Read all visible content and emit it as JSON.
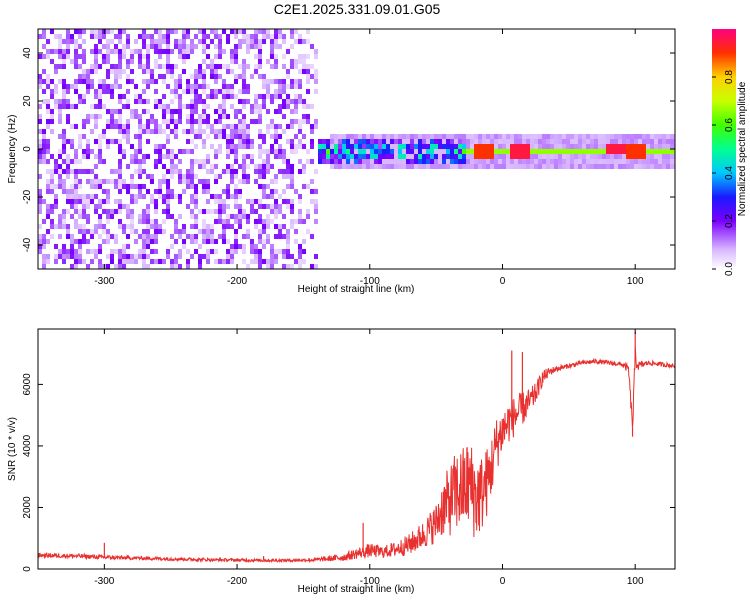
{
  "title": "C2E1.2025.331.09.01.G05",
  "chart_data": [
    {
      "type": "heatmap",
      "xlabel": "Height of straight line (km)",
      "ylabel": "Frequency (Hz)",
      "xlim": [
        -350,
        130
      ],
      "ylim": [
        -50,
        50
      ],
      "xticks": [
        -300,
        -200,
        -100,
        0,
        100
      ],
      "yticks": [
        -40,
        -20,
        0,
        20,
        40
      ],
      "colorbar": {
        "label": "Normalized spectral amplitude",
        "range": [
          0.0,
          1.0
        ],
        "ticks": [
          0.0,
          0.2,
          0.4,
          0.6,
          0.8
        ],
        "colormap": "rainbow"
      },
      "regions": [
        {
          "x": [
            -350,
            -140
          ],
          "freq": [
            -50,
            50
          ],
          "amplitude": 0.1,
          "pattern": "broadband noise"
        },
        {
          "x": [
            -140,
            -30
          ],
          "freq": [
            -5,
            6
          ],
          "amplitude": 0.3,
          "pattern": "narrowing band"
        },
        {
          "x": [
            -30,
            130
          ],
          "freq": [
            -2,
            2
          ],
          "amplitude": 0.6,
          "pattern": "narrow line at 0 Hz"
        }
      ],
      "peaks": [
        {
          "x": -15,
          "freq": 0,
          "amplitude": 0.9
        },
        {
          "x": 12,
          "freq": 0,
          "amplitude": 0.95
        },
        {
          "x": 85,
          "freq": 1,
          "amplitude": 0.95
        },
        {
          "x": 100,
          "freq": 0,
          "amplitude": 0.9
        }
      ]
    },
    {
      "type": "line",
      "xlabel": "Height of straight line (km)",
      "ylabel": "SNR (10 * v/v)",
      "xlim": [
        -350,
        130
      ],
      "ylim": [
        0,
        7800
      ],
      "xticks": [
        -300,
        -200,
        -100,
        0,
        100
      ],
      "yticks": [
        0,
        2000,
        4000,
        6000
      ],
      "color": "#e8302f",
      "series": [
        {
          "x": [
            -350,
            -320,
            -300,
            -280,
            -250,
            -220,
            -200,
            -180,
            -160,
            -140,
            -120,
            -110,
            -100,
            -90,
            -80,
            -70,
            -60,
            -50,
            -45,
            -40,
            -35,
            -30,
            -25,
            -20,
            -15,
            -10,
            -5,
            0,
            5,
            10,
            15,
            20,
            25,
            30,
            35,
            40,
            50,
            60,
            70,
            80,
            90,
            95,
            98,
            100,
            102,
            110,
            120,
            130
          ],
          "y": [
            450,
            420,
            380,
            360,
            330,
            300,
            290,
            280,
            280,
            300,
            380,
            500,
            600,
            550,
            650,
            800,
            1100,
            1500,
            2000,
            2200,
            2500,
            2600,
            2800,
            2300,
            2500,
            3000,
            4000,
            4500,
            4800,
            5000,
            5200,
            5400,
            5700,
            6200,
            6400,
            6500,
            6600,
            6700,
            6750,
            6700,
            6650,
            6500,
            4600,
            6900,
            6600,
            6700,
            6650,
            6600
          ],
          "spread": [
            150,
            150,
            140,
            120,
            110,
            100,
            100,
            100,
            100,
            120,
            250,
            350,
            450,
            400,
            500,
            700,
            900,
            1300,
            1900,
            2300,
            2700,
            2800,
            3000,
            2900,
            2500,
            2200,
            1800,
            1500,
            1400,
            1300,
            1100,
            900,
            700,
            500,
            300,
            200,
            150,
            150,
            150,
            150,
            150,
            300,
            600,
            700,
            300,
            150,
            150,
            150
          ]
        }
      ],
      "spikes": [
        {
          "x": -180,
          "y": 420
        },
        {
          "x": -300,
          "y": 850
        },
        {
          "x": -105,
          "y": 1500
        },
        {
          "x": 7,
          "y": 7100
        },
        {
          "x": 15,
          "y": 7050
        },
        {
          "x": 100,
          "y": 7700
        },
        {
          "x": 98,
          "y": 4300
        }
      ]
    }
  ]
}
